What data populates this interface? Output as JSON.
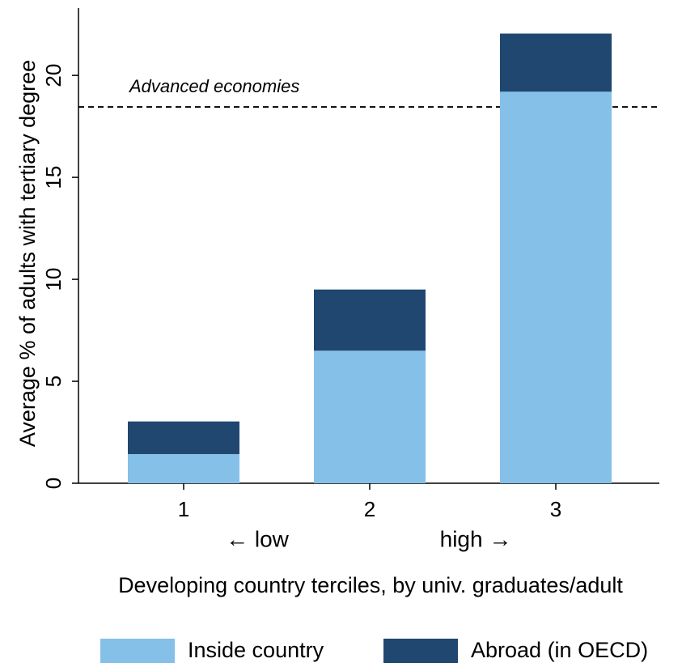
{
  "chart_data": {
    "type": "bar",
    "stacked": true,
    "categories": [
      "1",
      "2",
      "3"
    ],
    "series": [
      {
        "name": "Inside country",
        "color": "#85c0e9",
        "values": [
          1.43,
          6.5,
          19.2
        ]
      },
      {
        "name": "Abroad (in OECD)",
        "color": "#1f4770",
        "values": [
          1.6,
          3.0,
          2.85
        ]
      }
    ],
    "ylim": [
      0,
      23.3
    ],
    "yticks": [
      0,
      5,
      10,
      15,
      20
    ],
    "y_label": "Average % of adults with tertiary degree",
    "x_label": "Developing country terciles, by univ. graduates/adult",
    "x_annotations": [
      "← low",
      "high →"
    ],
    "reference_line": {
      "value": 18.45,
      "label": "Advanced economies"
    }
  }
}
